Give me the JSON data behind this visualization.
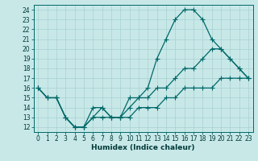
{
  "title": "",
  "xlabel": "Humidex (Indice chaleur)",
  "background_color": "#c8e8e8",
  "grid_color": "#a8d0d0",
  "line_color": "#006868",
  "line1_y": [
    16,
    15,
    15,
    13,
    12,
    12,
    14,
    14,
    13,
    13,
    15,
    15,
    16,
    19,
    21,
    23,
    24,
    24,
    23,
    21,
    20,
    19,
    18,
    17
  ],
  "line2_y": [
    16,
    15,
    15,
    13,
    12,
    12,
    13,
    14,
    13,
    13,
    14,
    15,
    15,
    16,
    16,
    17,
    18,
    18,
    19,
    20,
    20,
    19,
    18,
    17
  ],
  "line3_y": [
    16,
    15,
    15,
    13,
    12,
    12,
    13,
    13,
    13,
    13,
    13,
    14,
    14,
    14,
    15,
    15,
    16,
    16,
    16,
    16,
    17,
    17,
    17,
    17
  ],
  "x": [
    0,
    1,
    2,
    3,
    4,
    5,
    6,
    7,
    8,
    9,
    10,
    11,
    12,
    13,
    14,
    15,
    16,
    17,
    18,
    19,
    20,
    21,
    22,
    23
  ],
  "xlim": [
    -0.5,
    23.5
  ],
  "ylim": [
    11.5,
    24.5
  ],
  "yticks": [
    12,
    13,
    14,
    15,
    16,
    17,
    18,
    19,
    20,
    21,
    22,
    23,
    24
  ],
  "xticks": [
    0,
    1,
    2,
    3,
    4,
    5,
    6,
    7,
    8,
    9,
    10,
    11,
    12,
    13,
    14,
    15,
    16,
    17,
    18,
    19,
    20,
    21,
    22,
    23
  ],
  "tick_fontsize": 5.5,
  "xlabel_fontsize": 6.5,
  "marker_size": 2.0,
  "linewidth": 0.9
}
